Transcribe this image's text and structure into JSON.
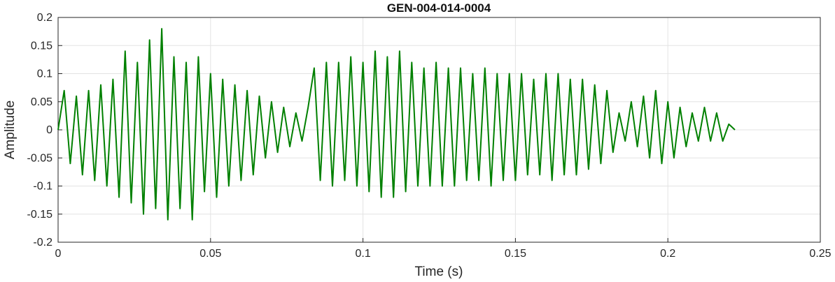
{
  "chart_data": {
    "type": "line",
    "title": "GEN-004-014-0004",
    "xlabel": "Time (s)",
    "ylabel": "Amplitude",
    "xlim": [
      0,
      0.25
    ],
    "ylim": [
      -0.2,
      0.2
    ],
    "x_ticks": [
      "0",
      "0.05",
      "0.1",
      "0.15",
      "0.2",
      "0.25"
    ],
    "y_ticks": [
      "0.2",
      "0.15",
      "0.1",
      "0.05",
      "0",
      "-0.05",
      "-0.1",
      "-0.15",
      "-0.2"
    ],
    "grid": true,
    "line_color": "#008000",
    "series": [
      {
        "x": [
          0,
          0.002,
          0.004,
          0.006,
          0.008,
          0.01,
          0.012,
          0.014,
          0.016,
          0.018,
          0.02,
          0.022,
          0.024,
          0.026,
          0.028,
          0.03,
          0.032,
          0.034,
          0.036,
          0.038,
          0.04,
          0.042,
          0.044,
          0.046,
          0.048,
          0.05,
          0.052,
          0.054,
          0.056,
          0.058,
          0.06,
          0.062,
          0.064,
          0.066,
          0.068,
          0.07,
          0.072,
          0.074,
          0.076,
          0.078,
          0.08,
          0.082,
          0.084,
          0.086,
          0.088,
          0.09,
          0.092,
          0.094,
          0.096,
          0.098,
          0.1,
          0.102,
          0.104,
          0.106,
          0.108,
          0.11,
          0.112,
          0.114,
          0.116,
          0.118,
          0.12,
          0.122,
          0.124,
          0.126,
          0.128,
          0.13,
          0.132,
          0.134,
          0.136,
          0.138,
          0.14,
          0.142,
          0.144,
          0.146,
          0.148,
          0.15,
          0.152,
          0.154,
          0.156,
          0.158,
          0.16,
          0.162,
          0.164,
          0.166,
          0.168,
          0.17,
          0.172,
          0.174,
          0.176,
          0.178,
          0.18,
          0.182,
          0.184,
          0.186,
          0.188,
          0.19,
          0.192,
          0.194,
          0.196,
          0.198,
          0.2,
          0.202,
          0.204,
          0.206,
          0.208,
          0.21,
          0.212,
          0.214,
          0.216,
          0.218,
          0.22,
          0.222
        ],
        "y": [
          0,
          0.07,
          -0.06,
          0.06,
          -0.08,
          0.07,
          -0.09,
          0.08,
          -0.1,
          0.09,
          -0.12,
          0.14,
          -0.13,
          0.12,
          -0.15,
          0.16,
          -0.14,
          0.18,
          -0.16,
          0.13,
          -0.14,
          0.12,
          -0.16,
          0.13,
          -0.11,
          0.1,
          -0.12,
          0.09,
          -0.1,
          0.08,
          -0.09,
          0.07,
          -0.08,
          0.06,
          -0.05,
          0.05,
          -0.04,
          0.04,
          -0.03,
          0.03,
          -0.02,
          0.04,
          0.11,
          -0.09,
          0.12,
          -0.1,
          0.12,
          -0.09,
          0.13,
          -0.1,
          0.12,
          -0.11,
          0.14,
          -0.12,
          0.13,
          -0.12,
          0.14,
          -0.11,
          0.12,
          -0.1,
          0.11,
          -0.1,
          0.12,
          -0.1,
          0.11,
          -0.1,
          0.11,
          -0.09,
          0.1,
          -0.09,
          0.11,
          -0.1,
          0.1,
          -0.09,
          0.1,
          -0.09,
          0.1,
          -0.08,
          0.09,
          -0.08,
          0.1,
          -0.09,
          0.1,
          -0.08,
          0.09,
          -0.08,
          0.09,
          -0.07,
          0.08,
          -0.06,
          0.07,
          -0.04,
          0.03,
          -0.02,
          0.05,
          -0.03,
          0.06,
          -0.05,
          0.07,
          -0.06,
          0.05,
          -0.05,
          0.04,
          -0.03,
          0.03,
          -0.02,
          0.04,
          -0.02,
          0.03,
          -0.02,
          0.01,
          0
        ]
      }
    ]
  }
}
